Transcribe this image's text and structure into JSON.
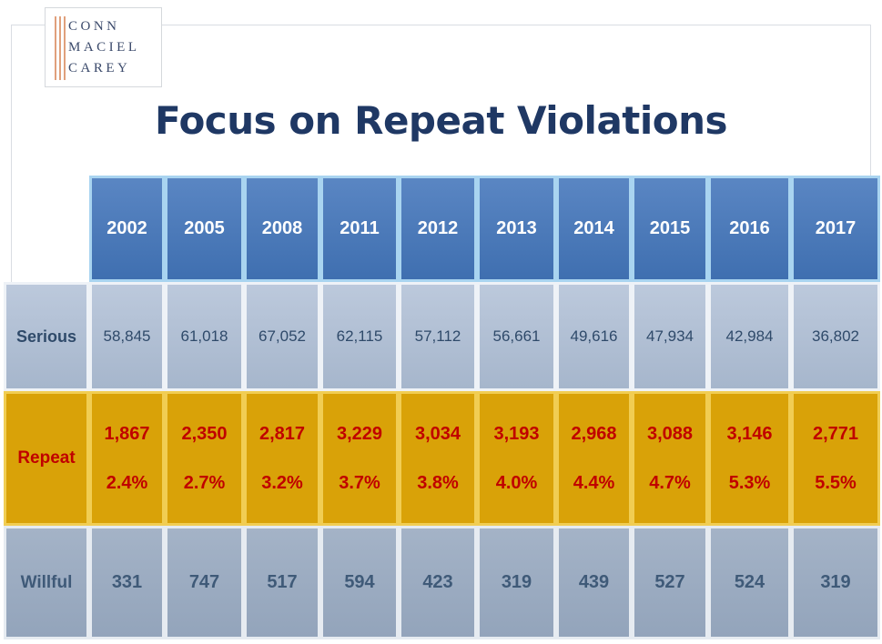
{
  "logo": {
    "lines": [
      "CONN",
      "MACIEL",
      "CAREY"
    ]
  },
  "title": "Focus on Repeat Violations",
  "chart_data": {
    "type": "table",
    "title": "Focus on Repeat Violations",
    "columns": [
      "2002",
      "2005",
      "2008",
      "2011",
      "2012",
      "2013",
      "2014",
      "2015",
      "2016",
      "2017"
    ],
    "rows": [
      {
        "label": "Serious",
        "values": [
          "58,845",
          "61,018",
          "67,052",
          "62,115",
          "57,112",
          "56,661",
          "49,616",
          "47,934",
          "42,984",
          "36,802"
        ]
      },
      {
        "label": "Repeat",
        "values": [
          "1,867",
          "2,350",
          "2,817",
          "3,229",
          "3,034",
          "3,193",
          "2,968",
          "3,088",
          "3,146",
          "2,771"
        ],
        "percents": [
          "2.4%",
          "2.7%",
          "3.2%",
          "3.7%",
          "3.8%",
          "4.0%",
          "4.4%",
          "4.7%",
          "5.3%",
          "5.5%"
        ]
      },
      {
        "label": "Willful",
        "values": [
          "331",
          "747",
          "517",
          "594",
          "423",
          "319",
          "439",
          "527",
          "524",
          "319"
        ]
      }
    ]
  },
  "colors": {
    "header_bg": "#4a78b9",
    "serious_bg": "#b1c0d4",
    "repeat_bg": "#d9a208",
    "repeat_text": "#c00000",
    "willful_bg": "#9caec4",
    "title": "#1f3864"
  }
}
